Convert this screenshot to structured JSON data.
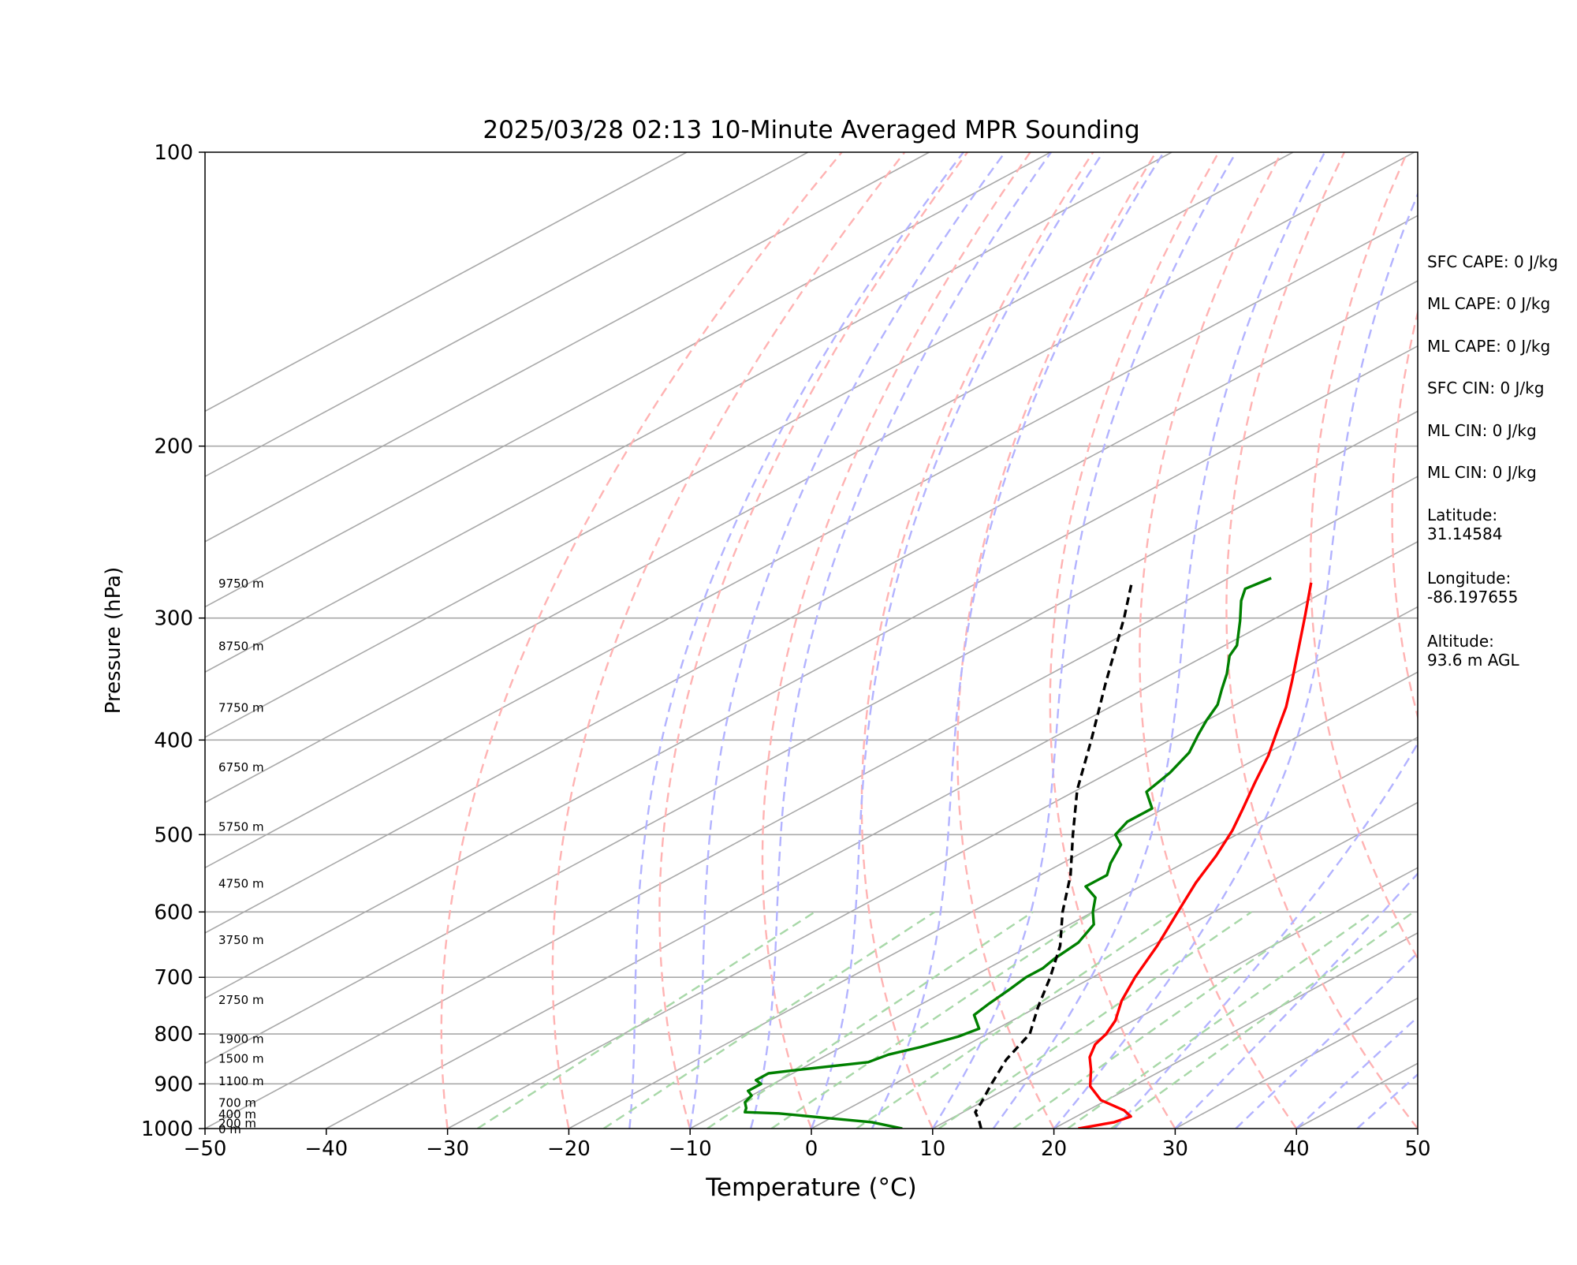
{
  "chart_data": {
    "type": "line",
    "title": "2025/03/28 02:13 10-Minute Averaged MPR Sounding",
    "xlabel": "Temperature (°C)",
    "ylabel": "Pressure (hPa)",
    "xlim": [
      -50,
      50
    ],
    "ylim": [
      1000,
      100
    ],
    "y_scale": "log",
    "skew": "skew-T",
    "grid": true,
    "x_ticks": [
      "−50",
      "−40",
      "−30",
      "−20",
      "−10",
      "0",
      "10",
      "20",
      "30",
      "40",
      "50"
    ],
    "y_ticks": [
      "100",
      "200",
      "300",
      "400",
      "500",
      "600",
      "700",
      "800",
      "900",
      "1000"
    ],
    "series": [
      {
        "color": "#ff0000",
        "points": [
          [
            22.0,
            1000
          ],
          [
            24.0,
            985
          ],
          [
            24.5,
            972
          ],
          [
            23.0,
            958
          ],
          [
            19.5,
            935
          ],
          [
            16.5,
            905
          ],
          [
            14.0,
            870
          ],
          [
            12.0,
            845
          ],
          [
            10.5,
            820
          ],
          [
            9.8,
            800
          ],
          [
            8.5,
            775
          ],
          [
            6.0,
            740
          ],
          [
            3.5,
            700
          ],
          [
            0.5,
            650
          ],
          [
            -3.0,
            600
          ],
          [
            -6.0,
            560
          ],
          [
            -8.5,
            525
          ],
          [
            -11.0,
            495
          ],
          [
            -13.5,
            470
          ],
          [
            -16.5,
            442
          ],
          [
            -19.5,
            415
          ],
          [
            -22.5,
            392
          ],
          [
            -25.5,
            370
          ],
          [
            -29.0,
            348
          ],
          [
            -33.5,
            322
          ],
          [
            -38.0,
            298
          ],
          [
            -42.5,
            276
          ]
        ]
      },
      {
        "color": "#008000",
        "points": [
          [
            7.5,
            1000
          ],
          [
            4.0,
            985
          ],
          [
            -0.5,
            975
          ],
          [
            -5.0,
            965
          ],
          [
            -8.0,
            962
          ],
          [
            -8.5,
            953
          ],
          [
            -9.5,
            940
          ],
          [
            -10.0,
            925
          ],
          [
            -11.0,
            915
          ],
          [
            -11.0,
            900
          ],
          [
            -12.0,
            892
          ],
          [
            -12.0,
            878
          ],
          [
            -10.5,
            872
          ],
          [
            -5.5,
            855
          ],
          [
            -5.0,
            840
          ],
          [
            -3.5,
            825
          ],
          [
            -2.0,
            805
          ],
          [
            -1.5,
            790
          ],
          [
            -4.0,
            765
          ],
          [
            -4.5,
            745
          ],
          [
            -5.0,
            720
          ],
          [
            -5.5,
            700
          ],
          [
            -5.5,
            685
          ],
          [
            -6.0,
            670
          ],
          [
            -6.5,
            645
          ],
          [
            -8.0,
            618
          ],
          [
            -10.0,
            600
          ],
          [
            -12.0,
            580
          ],
          [
            -14.5,
            565
          ],
          [
            -14.5,
            550
          ],
          [
            -16.0,
            535
          ],
          [
            -18.0,
            512
          ],
          [
            -20.0,
            500
          ],
          [
            -21.0,
            485
          ],
          [
            -21.0,
            470
          ],
          [
            -24.0,
            452
          ],
          [
            -25.0,
            432
          ],
          [
            -26.5,
            412
          ],
          [
            -28.5,
            395
          ],
          [
            -30.0,
            382
          ],
          [
            -31.5,
            368
          ],
          [
            -33.5,
            355
          ],
          [
            -35.5,
            342
          ],
          [
            -38.0,
            328
          ],
          [
            -39.0,
            320
          ],
          [
            -42.5,
            302
          ],
          [
            -45.5,
            288
          ],
          [
            -47.0,
            280
          ],
          [
            -46.5,
            273
          ]
        ]
      },
      {
        "color": "#000000",
        "dashed": true,
        "points": [
          [
            14.0,
            1000
          ],
          [
            12.5,
            980
          ],
          [
            11.0,
            962
          ],
          [
            10.0,
            940
          ],
          [
            8.0,
            900
          ],
          [
            5.5,
            850
          ],
          [
            3.5,
            800
          ],
          [
            0.0,
            750
          ],
          [
            -3.5,
            700
          ],
          [
            -7.5,
            650
          ],
          [
            -12.5,
            600
          ],
          [
            -17.5,
            550
          ],
          [
            -23.5,
            500
          ],
          [
            -30.0,
            450
          ],
          [
            -36.5,
            400
          ],
          [
            -44.0,
            350
          ],
          [
            -52.5,
            300
          ],
          [
            -57.5,
            275
          ]
        ]
      }
    ],
    "height_labels": [
      {
        "p": 1000,
        "label": "0 m"
      },
      {
        "p": 986,
        "label": "200 m"
      },
      {
        "p": 965,
        "label": "400 m"
      },
      {
        "p": 940,
        "label": "700 m"
      },
      {
        "p": 893,
        "label": "1100 m"
      },
      {
        "p": 847,
        "label": "1500 m"
      },
      {
        "p": 808,
        "label": "1900 m"
      },
      {
        "p": 737,
        "label": "2750 m"
      },
      {
        "p": 640,
        "label": "3750 m"
      },
      {
        "p": 560,
        "label": "4750 m"
      },
      {
        "p": 490,
        "label": "5750 m"
      },
      {
        "p": 426,
        "label": "6750 m"
      },
      {
        "p": 370,
        "label": "7750 m"
      },
      {
        "p": 320,
        "label": "8750 m"
      },
      {
        "p": 276,
        "label": "9750 m"
      }
    ]
  },
  "stats": {
    "sfc_cape": "SFC CAPE: 0 J/kg",
    "ml_cape_1": "ML CAPE: 0 J/kg",
    "ml_cape_2": "ML CAPE: 0 J/kg",
    "sfc_cin": "SFC CIN: 0 J/kg",
    "ml_cin_1": "ML CIN: 0 J/kg",
    "ml_cin_2": "ML CIN: 0 J/kg",
    "latitude": "Latitude:\n31.14584",
    "longitude": "Longitude:\n-86.197655",
    "altitude": "Altitude:\n93.6 m AGL"
  },
  "colors": {
    "isotherm": "#a9a9a9",
    "dry_adiabat": "#ffb3b3",
    "moist_adiabat": "#b3b3ff",
    "mixing_ratio": "#a8d8a8"
  }
}
